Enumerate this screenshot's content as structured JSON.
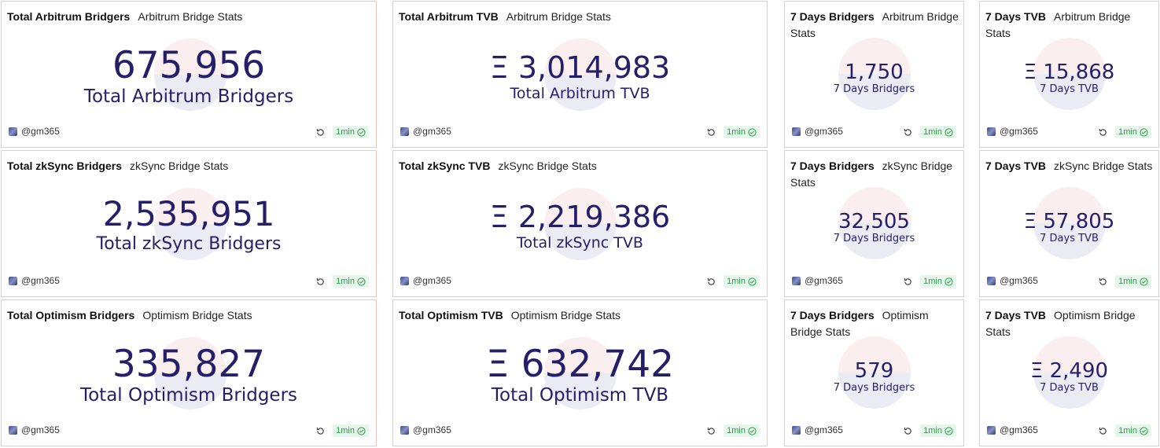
{
  "author": "@gm365",
  "refresh_label": "1min",
  "cards": [
    {
      "title": "Total Arbitrum Bridgers",
      "subtitle": "Arbitrum Bridge Stats",
      "value": "675,956",
      "label": "Total Arbitrum Bridgers"
    },
    {
      "title": "Total Arbitrum TVB",
      "subtitle": "Arbitrum Bridge Stats",
      "value": "Ξ 3,014,983",
      "label": "Total Arbitrum TVB"
    },
    {
      "title": "7 Days Bridgers",
      "subtitle": "Arbitrum Bridge Stats",
      "value": "1,750",
      "label": "7 Days Bridgers"
    },
    {
      "title": "7 Days TVB",
      "subtitle": "Arbitrum Bridge Stats",
      "value": "Ξ 15,868",
      "label": "7 Days TVB"
    },
    {
      "title": "Total zkSync Bridgers",
      "subtitle": "zkSync Bridge Stats",
      "value": "2,535,951",
      "label": "Total zkSync Bridgers"
    },
    {
      "title": "Total zkSync TVB",
      "subtitle": "zkSync Bridge Stats",
      "value": "Ξ 2,219,386",
      "label": "Total zkSync TVB"
    },
    {
      "title": "7 Days Bridgers",
      "subtitle": "zkSync Bridge Stats",
      "value": "32,505",
      "label": "7 Days Bridgers"
    },
    {
      "title": "7 Days TVB",
      "subtitle": "zkSync Bridge Stats",
      "value": "Ξ 57,805",
      "label": "7 Days TVB"
    },
    {
      "title": "Total Optimism Bridgers",
      "subtitle": "Optimism Bridge Stats",
      "value": "335,827",
      "label": "Total Optimism Bridgers"
    },
    {
      "title": "Total Optimism TVB",
      "subtitle": "Optimism Bridge Stats",
      "value": "Ξ 632,742",
      "label": "Total Optimism TVB"
    },
    {
      "title": "7 Days Bridgers",
      "subtitle": "Optimism Bridge Stats",
      "value": "579",
      "label": "7 Days Bridgers"
    },
    {
      "title": "7 Days TVB",
      "subtitle": "Optimism Bridge Stats",
      "value": "Ξ 2,490",
      "label": "7 Days TVB"
    }
  ],
  "colors": {
    "value_text": "#241f68",
    "card_border": "#f3c6bd",
    "badge_bg": "#e6f6ea",
    "badge_text": "#2f9a4e"
  },
  "icons": {
    "refresh": "refresh-icon",
    "check": "check-circle-icon",
    "avatar": "avatar"
  }
}
